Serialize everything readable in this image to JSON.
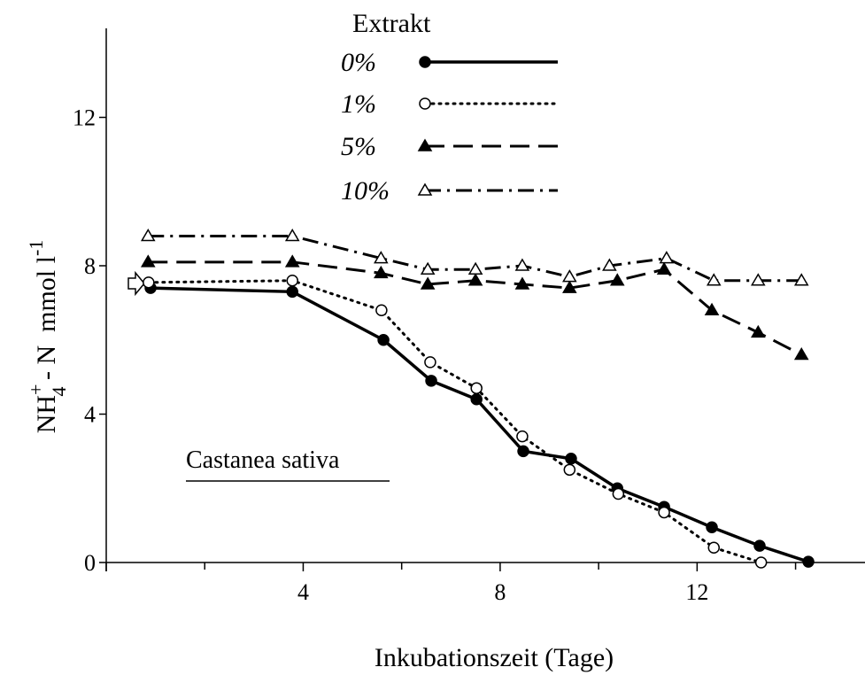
{
  "chart_data": {
    "type": "line",
    "xlabel": "Inkubationszeit (Tage)",
    "ylabel_parts": [
      "NH",
      "+",
      "4",
      " - N  mmol l",
      "-1"
    ],
    "annotation": "Castanea sativa",
    "legend_title": "Extrakt",
    "xlim": [
      0,
      15.5
    ],
    "ylim": [
      0,
      14.4
    ],
    "xticks": [
      0,
      4,
      8,
      12
    ],
    "xminor": [
      2,
      6,
      10,
      14
    ],
    "yticks": [
      0,
      4,
      8,
      12
    ],
    "color": "#000000",
    "series": [
      {
        "name": "0%",
        "marker": "filled-circle",
        "linestyle": "solid",
        "x": [
          0.9,
          3.78,
          5.63,
          6.6,
          7.52,
          8.47,
          9.44,
          10.38,
          11.33,
          12.3,
          13.27,
          14.26
        ],
        "values": [
          7.4,
          7.3,
          6.0,
          4.9,
          4.4,
          3.0,
          2.8,
          2.0,
          1.5,
          0.95,
          0.45,
          0.02
        ]
      },
      {
        "name": "1%",
        "marker": "open-circle",
        "linestyle": "dotted",
        "x": [
          0.86,
          3.78,
          5.59,
          6.58,
          7.52,
          8.45,
          9.41,
          10.4,
          11.33,
          12.34,
          13.3
        ],
        "values": [
          7.55,
          7.6,
          6.8,
          5.4,
          4.7,
          3.4,
          2.5,
          1.85,
          1.35,
          0.4,
          0
        ]
      },
      {
        "name": "5%",
        "marker": "filled-triangle",
        "linestyle": "dashed",
        "x": [
          0.85,
          3.78,
          5.58,
          6.53,
          7.5,
          8.45,
          9.41,
          10.38,
          11.33,
          12.3,
          13.24,
          14.12
        ],
        "values": [
          8.1,
          8.1,
          7.8,
          7.5,
          7.6,
          7.5,
          7.4,
          7.6,
          7.9,
          6.8,
          6.2,
          5.6
        ]
      },
      {
        "name": "10%",
        "marker": "open-triangle",
        "linestyle": "dashdot",
        "x": [
          0.85,
          3.78,
          5.58,
          6.53,
          7.5,
          8.45,
          9.41,
          10.22,
          11.38,
          12.34,
          13.24,
          14.12
        ],
        "values": [
          8.8,
          8.8,
          8.2,
          7.9,
          7.9,
          8.0,
          7.7,
          8.0,
          8.2,
          7.6,
          7.6,
          7.6
        ]
      }
    ]
  }
}
